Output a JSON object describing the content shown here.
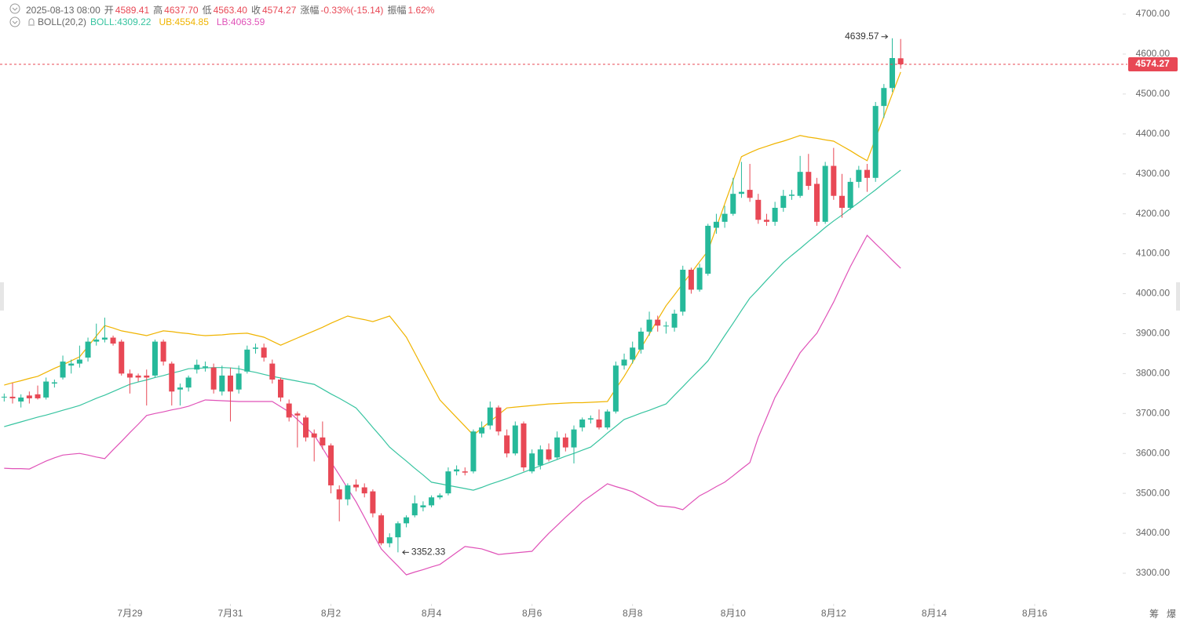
{
  "header": {
    "time": "2025-08-13 08:00",
    "items": [
      {
        "label": "开",
        "value": "4589.41"
      },
      {
        "label": "高",
        "value": "4637.70"
      },
      {
        "label": "低",
        "value": "4563.40"
      },
      {
        "label": "收",
        "value": "4574.27"
      },
      {
        "label": "涨幅",
        "value": "-0.33%(-15.14)"
      },
      {
        "label": "振幅",
        "value": "1.62%"
      }
    ],
    "indicator": "BOLL(20,2)"
  },
  "toolbar": [
    "筹",
    "爆"
  ],
  "chart_data": {
    "type": "candlestick",
    "up_color": "#26b99a",
    "down_color": "#e84855",
    "candles": {
      "open": [
        3740,
        3742,
        3730,
        3745,
        3748,
        3740,
        3775,
        3790,
        3820,
        3825,
        3840,
        3880,
        3885,
        3890,
        3880,
        3800,
        3795,
        3795,
        3795,
        3880,
        3825,
        3760,
        3765,
        3810,
        3815,
        3815,
        3755,
        3795,
        3760,
        3805,
        3862,
        3865,
        3825,
        3785,
        3725,
        3700,
        3690,
        3650,
        3640,
        3620,
        3510,
        3485,
        3522,
        3515,
        3505,
        3445,
        3375,
        3390,
        3425,
        3445,
        3465,
        3470,
        3490,
        3500,
        3555,
        3555,
        3555,
        3650,
        3670,
        3715,
        3645,
        3600,
        3675,
        3555,
        3570,
        3610,
        3590,
        3640,
        3615,
        3665,
        3685,
        3685,
        3665,
        3705,
        3820,
        3835,
        3860,
        3905,
        3935,
        3918,
        3915,
        3955,
        4060,
        4010,
        4050,
        4165,
        4180,
        4200,
        4250,
        4260,
        4235,
        4185,
        4180,
        4215,
        4245,
        4245,
        4305,
        4275,
        4180,
        4320,
        4245,
        4215,
        4280,
        4310,
        4290,
        4470,
        4515,
        4589.41
      ],
      "high": [
        3750,
        3777,
        3748,
        3755,
        3770,
        3790,
        3785,
        3845,
        3835,
        3870,
        3890,
        3925,
        3940,
        3895,
        3885,
        3810,
        3800,
        3810,
        3885,
        3885,
        3830,
        3775,
        3795,
        3835,
        3830,
        3825,
        3820,
        3815,
        3820,
        3870,
        3875,
        3875,
        3835,
        3790,
        3735,
        3705,
        3695,
        3660,
        3680,
        3625,
        3520,
        3525,
        3535,
        3525,
        3510,
        3450,
        3400,
        3430,
        3445,
        3495,
        3480,
        3495,
        3500,
        3565,
        3570,
        3565,
        3660,
        3680,
        3730,
        3720,
        3660,
        3680,
        3680,
        3610,
        3620,
        3625,
        3655,
        3650,
        3670,
        3690,
        3695,
        3710,
        3710,
        3830,
        3850,
        3880,
        3915,
        3955,
        3945,
        3930,
        3960,
        4070,
        4065,
        4075,
        4175,
        4200,
        4220,
        4290,
        4330,
        4325,
        4250,
        4200,
        4230,
        4260,
        4260,
        4345,
        4350,
        4290,
        4330,
        4365,
        4300,
        4290,
        4320,
        4325,
        4480,
        4525,
        4639.57,
        4637.7
      ],
      "low": [
        3730,
        3725,
        3715,
        3725,
        3735,
        3735,
        3765,
        3785,
        3800,
        3815,
        3830,
        3870,
        3878,
        3870,
        3795,
        3750,
        3780,
        3720,
        3790,
        3820,
        3720,
        3720,
        3755,
        3800,
        3805,
        3750,
        3745,
        3680,
        3750,
        3800,
        3850,
        3830,
        3775,
        3730,
        3680,
        3615,
        3630,
        3580,
        3610,
        3500,
        3430,
        3470,
        3505,
        3490,
        3440,
        3370,
        3365,
        3352.33,
        3415,
        3440,
        3455,
        3465,
        3485,
        3495,
        3545,
        3545,
        3550,
        3640,
        3660,
        3645,
        3590,
        3595,
        3555,
        3550,
        3560,
        3580,
        3585,
        3605,
        3575,
        3655,
        3675,
        3660,
        3660,
        3700,
        3810,
        3825,
        3850,
        3895,
        3905,
        3900,
        3905,
        3945,
        4000,
        4005,
        4045,
        4150,
        4165,
        4195,
        4240,
        4230,
        4175,
        4170,
        4170,
        4205,
        4235,
        4240,
        4260,
        4170,
        4175,
        4235,
        4190,
        4210,
        4265,
        4255,
        4280,
        4440,
        4505,
        4563.4
      ],
      "close": [
        3742,
        3738,
        3740,
        3738,
        3738,
        3780,
        3778,
        3830,
        3825,
        3835,
        3880,
        3885,
        3890,
        3875,
        3800,
        3790,
        3790,
        3790,
        3880,
        3830,
        3755,
        3765,
        3790,
        3822,
        3818,
        3760,
        3795,
        3755,
        3800,
        3860,
        3865,
        3840,
        3785,
        3740,
        3690,
        3695,
        3640,
        3640,
        3620,
        3520,
        3485,
        3520,
        3515,
        3500,
        3450,
        3375,
        3390,
        3425,
        3440,
        3475,
        3470,
        3490,
        3495,
        3555,
        3560,
        3552,
        3655,
        3665,
        3715,
        3655,
        3600,
        3670,
        3565,
        3600,
        3610,
        3585,
        3640,
        3615,
        3660,
        3685,
        3688,
        3665,
        3705,
        3820,
        3835,
        3865,
        3905,
        3935,
        3920,
        3920,
        3950,
        4060,
        4010,
        4065,
        4170,
        4180,
        4200,
        4250,
        4255,
        4240,
        4185,
        4180,
        4215,
        4245,
        4248,
        4305,
        4270,
        4180,
        4320,
        4245,
        4215,
        4280,
        4310,
        4290,
        4470,
        4515,
        4590,
        4574.27
      ]
    },
    "series": [
      {
        "name": "BOLL:",
        "color": "#37c4a0",
        "values": [
          3667,
          3673,
          3679,
          3685,
          3691,
          3696,
          3702,
          3708,
          3714,
          3720,
          3729,
          3738,
          3746,
          3755,
          3764,
          3773,
          3779,
          3784,
          3790,
          3795,
          3801,
          3806,
          3812,
          3813,
          3814,
          3815,
          3815,
          3814,
          3812,
          3807,
          3803,
          3798,
          3793,
          3789,
          3785,
          3781,
          3777,
          3773,
          3761,
          3749,
          3738,
          3726,
          3714,
          3690,
          3665,
          3641,
          3616,
          3598,
          3581,
          3563,
          3546,
          3528,
          3524,
          3520,
          3516,
          3512,
          3508,
          3515,
          3523,
          3530,
          3537,
          3545,
          3553,
          3561,
          3569,
          3577,
          3585,
          3593,
          3600,
          3608,
          3616,
          3633,
          3651,
          3668,
          3685,
          3693,
          3701,
          3708,
          3716,
          3724,
          3746,
          3767,
          3789,
          3810,
          3832,
          3863,
          3895,
          3926,
          3958,
          3989,
          4011,
          4034,
          4056,
          4078,
          4096,
          4113,
          4131,
          4148,
          4166,
          4182,
          4197,
          4213,
          4228,
          4244,
          4260,
          4277,
          4293,
          4309.22
        ]
      },
      {
        "name": "UB:",
        "color": "#f0b400",
        "values": [
          3771,
          3777,
          3782,
          3788,
          3793,
          3803,
          3813,
          3822,
          3832,
          3842,
          3868,
          3894,
          3920,
          3914,
          3907,
          3903,
          3899,
          3895,
          3901,
          3907,
          3905,
          3902,
          3900,
          3897,
          3895,
          3896,
          3897,
          3899,
          3900,
          3901,
          3896,
          3891,
          3881,
          3871,
          3880,
          3889,
          3898,
          3907,
          3916,
          3926,
          3935,
          3944,
          3939,
          3935,
          3930,
          3937,
          3944,
          3918,
          3891,
          3852,
          3812,
          3773,
          3734,
          3712,
          3690,
          3668,
          3646,
          3663,
          3680,
          3697,
          3714,
          3716,
          3718,
          3720,
          3722,
          3724,
          3725,
          3726,
          3727,
          3727,
          3728,
          3729,
          3730,
          3762,
          3793,
          3828,
          3864,
          3899,
          3935,
          3970,
          3997,
          4025,
          4052,
          4080,
          4107,
          4166,
          4225,
          4284,
          4343,
          4353,
          4362,
          4369,
          4376,
          4382,
          4389,
          4396,
          4392,
          4389,
          4385,
          4382,
          4370,
          4358,
          4345,
          4333,
          4389,
          4444,
          4500,
          4554.85
        ]
      },
      {
        "name": "LB:",
        "color": "#e052b8",
        "values": [
          3563,
          3562,
          3562,
          3561,
          3571,
          3581,
          3589,
          3596,
          3598,
          3600,
          3596,
          3591,
          3587,
          3609,
          3630,
          3652,
          3673,
          3695,
          3700,
          3704,
          3709,
          3713,
          3718,
          3726,
          3734,
          3733,
          3732,
          3731,
          3730,
          3730,
          3730,
          3730,
          3730,
          3717,
          3704,
          3685,
          3665,
          3646,
          3613,
          3579,
          3546,
          3512,
          3479,
          3440,
          3400,
          3361,
          3339,
          3318,
          3296,
          3303,
          3309,
          3316,
          3322,
          3337,
          3352,
          3367,
          3364,
          3361,
          3354,
          3347,
          3349,
          3351,
          3353,
          3355,
          3378,
          3400,
          3420,
          3440,
          3459,
          3479,
          3494,
          3509,
          3524,
          3517,
          3511,
          3504,
          3492,
          3481,
          3469,
          3467,
          3465,
          3459,
          3477,
          3494,
          3505,
          3517,
          3528,
          3544,
          3561,
          3577,
          3640,
          3690,
          3740,
          3777,
          3815,
          3852,
          3877,
          3901,
          3940,
          3979,
          4024,
          4068,
          4107,
          4146,
          4125,
          4105,
          4084,
          4063.59
        ]
      }
    ],
    "xlim": [
      -0.5,
      133.5
    ],
    "xticks": [
      {
        "value": 15,
        "label": "7月29"
      },
      {
        "value": 27,
        "label": "7月31"
      },
      {
        "value": 39,
        "label": "8月2"
      },
      {
        "value": 51,
        "label": "8月4"
      },
      {
        "value": 63,
        "label": "8月6"
      },
      {
        "value": 75,
        "label": "8月8"
      },
      {
        "value": 87,
        "label": "8月10"
      },
      {
        "value": 99,
        "label": "8月12"
      },
      {
        "value": 111,
        "label": "8月14"
      },
      {
        "value": 123,
        "label": "8月16"
      }
    ],
    "ylim": [
      3235,
      4735
    ],
    "yticks": [
      {
        "value": 3300,
        "label": "3300.00"
      },
      {
        "value": 3400,
        "label": "3400.00"
      },
      {
        "value": 3500,
        "label": "3500.00"
      },
      {
        "value": 3600,
        "label": "3600.00"
      },
      {
        "value": 3700,
        "label": "3700.00"
      },
      {
        "value": 3800,
        "label": "3800.00"
      },
      {
        "value": 3900,
        "label": "3900.00"
      },
      {
        "value": 4000,
        "label": "4000.00"
      },
      {
        "value": 4100,
        "label": "4100.00"
      },
      {
        "value": 4200,
        "label": "4200.00"
      },
      {
        "value": 4300,
        "label": "4300.00"
      },
      {
        "value": 4400,
        "label": "4400.00"
      },
      {
        "value": 4500,
        "label": "4500.00"
      },
      {
        "value": 4600,
        "label": "4600.00"
      },
      {
        "value": 4700,
        "label": "4700.00"
      }
    ],
    "price_line_color": "#e84855"
  }
}
